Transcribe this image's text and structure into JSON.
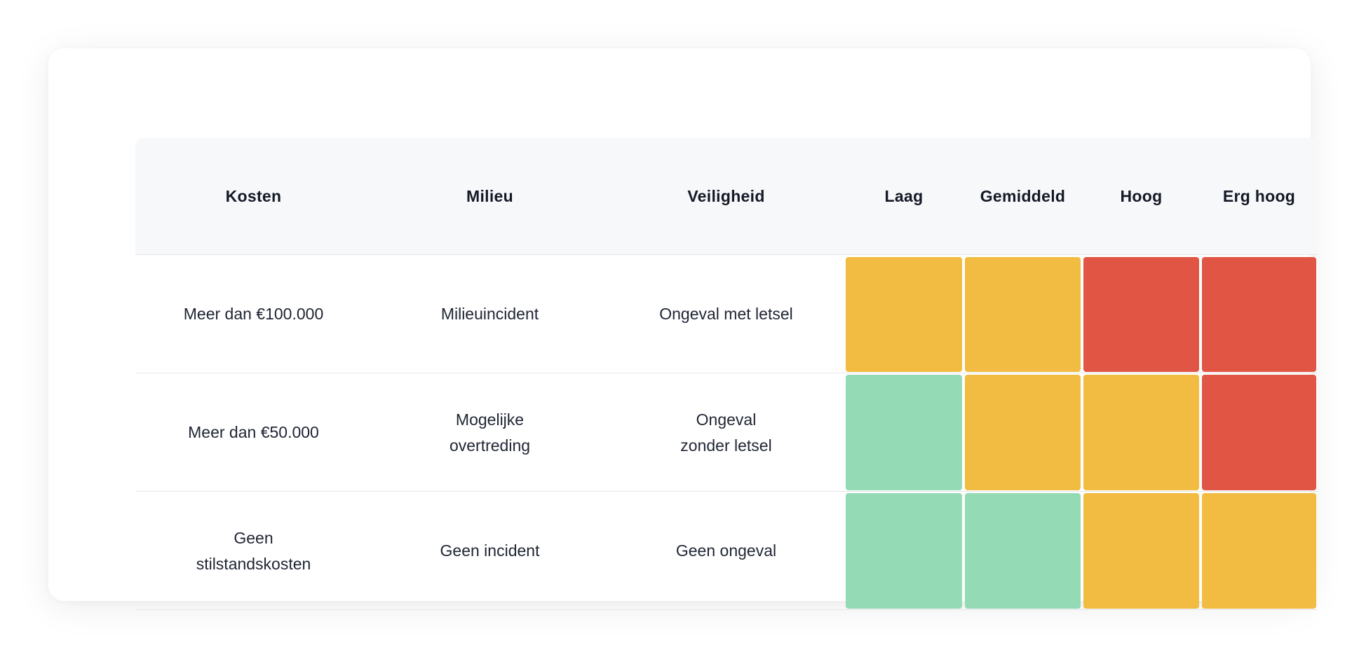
{
  "headers": {
    "costs": "Kosten",
    "environment": "Milieu",
    "safety": "Veiligheid",
    "likelihood": [
      "Laag",
      "Gemiddeld",
      "Hoog",
      "Erg hoog"
    ]
  },
  "rows": [
    {
      "costs": "Meer dan €100.000",
      "environment": "Milieuincident",
      "safety": "Ongeval met letsel",
      "levels": [
        "medium",
        "medium",
        "high",
        "high"
      ]
    },
    {
      "costs": "Meer dan €50.000",
      "environment": "Mogelijke overtreding",
      "safety": "Ongeval zonder letsel",
      "levels": [
        "low",
        "medium",
        "medium",
        "high"
      ]
    },
    {
      "costs": "Geen stilstandskosten",
      "environment": "Geen incident",
      "safety": "Geen ongeval",
      "levels": [
        "low",
        "low",
        "medium",
        "medium"
      ]
    }
  ],
  "colors": {
    "low": "#94dbb5",
    "medium": "#f1bc41",
    "high": "#e05543"
  }
}
